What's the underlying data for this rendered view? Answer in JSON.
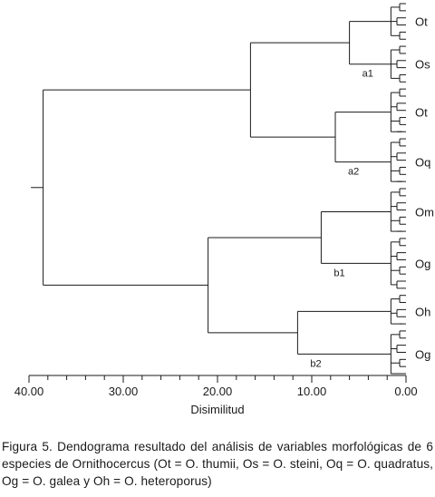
{
  "chart_data": {
    "type": "dendrogram",
    "xlabel": "Disimilitud",
    "x_axis": {
      "range": [
        40,
        0
      ],
      "tick_labels": [
        "40.00",
        "30.00",
        "20.00",
        "10.00",
        "0.00"
      ],
      "tick_values": [
        40,
        30,
        20,
        10,
        0
      ]
    },
    "groups": [
      {
        "label": "Ot",
        "leaves": 6
      },
      {
        "label": "Os",
        "leaves": 6
      },
      {
        "label": "Ot",
        "leaves": 7
      },
      {
        "label": "Oq",
        "leaves": 7
      },
      {
        "label": "Om",
        "leaves": 7
      },
      {
        "label": "Og",
        "leaves": 8
      },
      {
        "label": "Oh",
        "leaves": 5
      },
      {
        "label": "Og",
        "leaves": 7
      }
    ],
    "clusters": [
      {
        "label": "a1",
        "height": 6.0
      },
      {
        "label": "a2",
        "height": 7.5
      },
      {
        "label": "b1",
        "height": 9.0
      },
      {
        "label": "b2",
        "height": 11.5
      }
    ],
    "merge_heights": {
      "a": 16.5,
      "b": 21.0,
      "root": 38.5,
      "Om_Og": 9.0,
      "Oh_Og": 11.5
    }
  },
  "caption": "Figura 5. Dendograma resultado del análisis de variables morfológicas de 6 especies de Ornithocercus (Ot = O. thumii, Os = O. steini, Oq = O. quadratus, Og = O. galea y Oh = O. heteroporus)"
}
